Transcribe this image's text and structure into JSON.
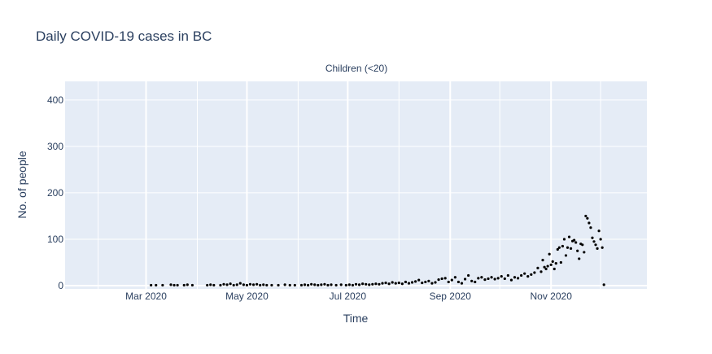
{
  "chart_data": {
    "type": "scatter",
    "title": "Daily COVID-19 cases in BC",
    "subtitle": "Children (<20)",
    "xlabel": "Time",
    "ylabel": "No. of people",
    "xlim": [
      "2020-01-12",
      "2020-12-29"
    ],
    "ylim": [
      -7,
      440
    ],
    "x_ticks": [
      {
        "date": "2020-03-01",
        "label": "Mar 2020"
      },
      {
        "date": "2020-05-01",
        "label": "May 2020"
      },
      {
        "date": "2020-07-01",
        "label": "Jul 2020"
      },
      {
        "date": "2020-09-01",
        "label": "Sep 2020"
      },
      {
        "date": "2020-11-01",
        "label": "Nov 2020"
      }
    ],
    "y_ticks": [
      0,
      100,
      200,
      300,
      400
    ],
    "grid": true,
    "colors": {
      "plot_bg": "#e5ecf6",
      "grid": "#ffffff",
      "marker": "#000000",
      "text": "#2a3f5f"
    },
    "series": [
      {
        "points": [
          [
            "2020-03-04",
            1
          ],
          [
            "2020-03-07",
            1
          ],
          [
            "2020-03-11",
            1
          ],
          [
            "2020-03-16",
            2
          ],
          [
            "2020-03-18",
            1
          ],
          [
            "2020-03-20",
            1
          ],
          [
            "2020-03-24",
            1
          ],
          [
            "2020-03-26",
            2
          ],
          [
            "2020-03-29",
            1
          ],
          [
            "2020-04-07",
            1
          ],
          [
            "2020-04-09",
            2
          ],
          [
            "2020-04-11",
            1
          ],
          [
            "2020-04-15",
            1
          ],
          [
            "2020-04-17",
            3
          ],
          [
            "2020-04-19",
            2
          ],
          [
            "2020-04-21",
            4
          ],
          [
            "2020-04-23",
            1
          ],
          [
            "2020-04-25",
            2
          ],
          [
            "2020-04-27",
            5
          ],
          [
            "2020-04-29",
            2
          ],
          [
            "2020-05-01",
            1
          ],
          [
            "2020-05-03",
            3
          ],
          [
            "2020-05-05",
            2
          ],
          [
            "2020-05-07",
            3
          ],
          [
            "2020-05-09",
            1
          ],
          [
            "2020-05-11",
            2
          ],
          [
            "2020-05-13",
            1
          ],
          [
            "2020-05-16",
            1
          ],
          [
            "2020-05-20",
            1
          ],
          [
            "2020-05-24",
            2
          ],
          [
            "2020-05-27",
            1
          ],
          [
            "2020-05-30",
            1
          ],
          [
            "2020-06-03",
            1
          ],
          [
            "2020-06-05",
            2
          ],
          [
            "2020-06-07",
            1
          ],
          [
            "2020-06-09",
            3
          ],
          [
            "2020-06-11",
            2
          ],
          [
            "2020-06-13",
            1
          ],
          [
            "2020-06-15",
            2
          ],
          [
            "2020-06-17",
            3
          ],
          [
            "2020-06-19",
            1
          ],
          [
            "2020-06-21",
            2
          ],
          [
            "2020-06-24",
            1
          ],
          [
            "2020-06-27",
            2
          ],
          [
            "2020-06-30",
            1
          ],
          [
            "2020-07-02",
            2
          ],
          [
            "2020-07-04",
            1
          ],
          [
            "2020-07-06",
            3
          ],
          [
            "2020-07-08",
            2
          ],
          [
            "2020-07-10",
            4
          ],
          [
            "2020-07-12",
            3
          ],
          [
            "2020-07-14",
            2
          ],
          [
            "2020-07-16",
            3
          ],
          [
            "2020-07-18",
            4
          ],
          [
            "2020-07-20",
            3
          ],
          [
            "2020-07-22",
            5
          ],
          [
            "2020-07-24",
            6
          ],
          [
            "2020-07-26",
            4
          ],
          [
            "2020-07-28",
            7
          ],
          [
            "2020-07-30",
            5
          ],
          [
            "2020-08-01",
            6
          ],
          [
            "2020-08-03",
            4
          ],
          [
            "2020-08-05",
            8
          ],
          [
            "2020-08-07",
            5
          ],
          [
            "2020-08-09",
            7
          ],
          [
            "2020-08-11",
            9
          ],
          [
            "2020-08-13",
            12
          ],
          [
            "2020-08-15",
            6
          ],
          [
            "2020-08-17",
            8
          ],
          [
            "2020-08-19",
            10
          ],
          [
            "2020-08-21",
            5
          ],
          [
            "2020-08-23",
            7
          ],
          [
            "2020-08-25",
            13
          ],
          [
            "2020-08-27",
            15
          ],
          [
            "2020-08-29",
            16
          ],
          [
            "2020-08-31",
            8
          ],
          [
            "2020-09-02",
            12
          ],
          [
            "2020-09-04",
            18
          ],
          [
            "2020-09-06",
            8
          ],
          [
            "2020-09-08",
            5
          ],
          [
            "2020-09-10",
            14
          ],
          [
            "2020-09-12",
            22
          ],
          [
            "2020-09-14",
            10
          ],
          [
            "2020-09-16",
            8
          ],
          [
            "2020-09-18",
            16
          ],
          [
            "2020-09-20",
            18
          ],
          [
            "2020-09-22",
            13
          ],
          [
            "2020-09-24",
            15
          ],
          [
            "2020-09-26",
            18
          ],
          [
            "2020-09-28",
            14
          ],
          [
            "2020-09-30",
            16
          ],
          [
            "2020-10-02",
            20
          ],
          [
            "2020-10-04",
            15
          ],
          [
            "2020-10-06",
            22
          ],
          [
            "2020-10-08",
            12
          ],
          [
            "2020-10-10",
            18
          ],
          [
            "2020-10-12",
            16
          ],
          [
            "2020-10-14",
            22
          ],
          [
            "2020-10-16",
            26
          ],
          [
            "2020-10-18",
            20
          ],
          [
            "2020-10-20",
            24
          ],
          [
            "2020-10-22",
            28
          ],
          [
            "2020-10-24",
            38
          ],
          [
            "2020-10-26",
            30
          ],
          [
            "2020-10-27",
            55
          ],
          [
            "2020-10-28",
            40
          ],
          [
            "2020-10-29",
            36
          ],
          [
            "2020-10-30",
            42
          ],
          [
            "2020-10-31",
            68
          ],
          [
            "2020-11-01",
            45
          ],
          [
            "2020-11-02",
            52
          ],
          [
            "2020-11-03",
            36
          ],
          [
            "2020-11-04",
            48
          ],
          [
            "2020-11-05",
            78
          ],
          [
            "2020-11-06",
            82
          ],
          [
            "2020-11-07",
            50
          ],
          [
            "2020-11-08",
            85
          ],
          [
            "2020-11-09",
            100
          ],
          [
            "2020-11-10",
            65
          ],
          [
            "2020-11-11",
            82
          ],
          [
            "2020-11-12",
            105
          ],
          [
            "2020-11-13",
            80
          ],
          [
            "2020-11-14",
            96
          ],
          [
            "2020-11-15",
            98
          ],
          [
            "2020-11-16",
            93
          ],
          [
            "2020-11-17",
            75
          ],
          [
            "2020-11-18",
            58
          ],
          [
            "2020-11-19",
            90
          ],
          [
            "2020-11-20",
            88
          ],
          [
            "2020-11-21",
            72
          ],
          [
            "2020-11-22",
            150
          ],
          [
            "2020-11-23",
            145
          ],
          [
            "2020-11-24",
            135
          ],
          [
            "2020-11-25",
            125
          ],
          [
            "2020-11-26",
            103
          ],
          [
            "2020-11-27",
            95
          ],
          [
            "2020-11-28",
            88
          ],
          [
            "2020-11-29",
            80
          ],
          [
            "2020-11-30",
            118
          ],
          [
            "2020-12-01",
            100
          ],
          [
            "2020-12-02",
            82
          ],
          [
            "2020-12-03",
            2
          ]
        ]
      }
    ]
  }
}
